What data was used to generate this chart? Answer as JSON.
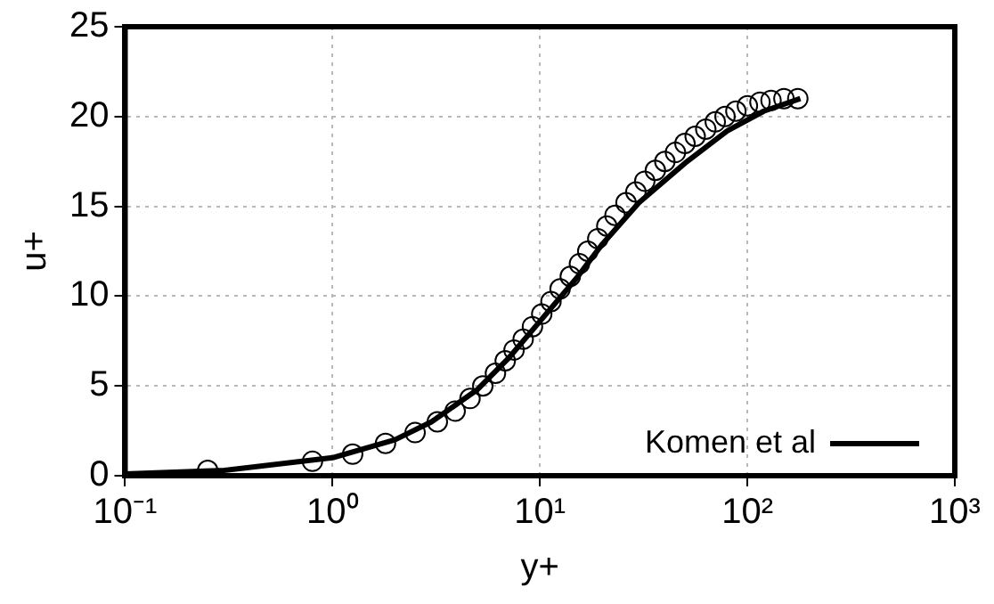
{
  "chart_data": {
    "type": "scatter",
    "xlabel": "y+",
    "ylabel": "u+",
    "log": "x",
    "xlim": [
      0.1,
      1000
    ],
    "xticks": [
      {
        "value": 0.1,
        "label": "10⁻¹"
      },
      {
        "value": 1,
        "label": "10⁰"
      },
      {
        "value": 10,
        "label": "10¹"
      },
      {
        "value": 100,
        "label": "10²"
      },
      {
        "value": 1000,
        "label": "10³"
      }
    ],
    "ylim": [
      0,
      25
    ],
    "yticks": [
      0,
      5,
      10,
      15,
      20,
      25
    ],
    "grid": true,
    "legend": "bottom right",
    "series": [
      {
        "type": "scatter",
        "marker": "circle",
        "color": "#000000",
        "x": [
          0.25,
          0.8,
          1.25,
          1.8,
          2.5,
          3.2,
          3.9,
          4.6,
          5.3,
          6.1,
          6.8,
          7.5,
          8.3,
          9.2,
          10.2,
          11.3,
          12.5,
          14,
          15.5,
          17,
          19,
          21,
          23,
          26,
          29,
          32,
          36,
          40,
          45,
          50,
          56,
          63,
          70,
          78,
          88,
          100,
          115,
          130,
          150,
          175
        ],
        "values": [
          0.3,
          0.8,
          1.2,
          1.8,
          2.4,
          3.0,
          3.6,
          4.3,
          5.0,
          5.7,
          6.4,
          7.0,
          7.6,
          8.3,
          9.0,
          9.7,
          10.4,
          11.1,
          11.8,
          12.5,
          13.2,
          13.9,
          14.5,
          15.2,
          15.8,
          16.4,
          17.0,
          17.5,
          18.0,
          18.5,
          18.9,
          19.3,
          19.7,
          20.0,
          20.3,
          20.6,
          20.8,
          20.9,
          21.0,
          21.0
        ]
      },
      {
        "type": "line",
        "name": "Komen et al",
        "marker": "none",
        "line_style": "solid",
        "color": "#000000",
        "x": [
          0.1,
          0.3,
          1,
          2,
          3,
          5,
          7,
          10,
          15,
          20,
          30,
          50,
          80,
          120,
          180
        ],
        "values": [
          0.1,
          0.3,
          1.0,
          2.0,
          3.0,
          4.8,
          6.5,
          8.6,
          11.0,
          12.9,
          15.2,
          17.4,
          19.2,
          20.3,
          21.0
        ]
      }
    ]
  }
}
